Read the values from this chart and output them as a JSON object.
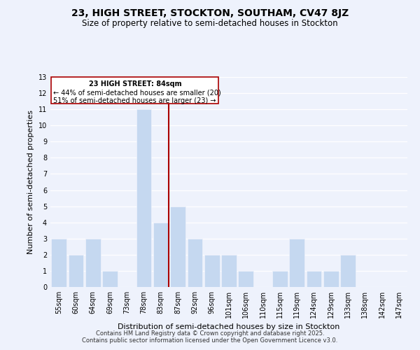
{
  "title": "23, HIGH STREET, STOCKTON, SOUTHAM, CV47 8JZ",
  "subtitle": "Size of property relative to semi-detached houses in Stockton",
  "xlabel": "Distribution of semi-detached houses by size in Stockton",
  "ylabel": "Number of semi-detached properties",
  "bin_labels": [
    "55sqm",
    "60sqm",
    "64sqm",
    "69sqm",
    "73sqm",
    "78sqm",
    "83sqm",
    "87sqm",
    "92sqm",
    "96sqm",
    "101sqm",
    "106sqm",
    "110sqm",
    "115sqm",
    "119sqm",
    "124sqm",
    "129sqm",
    "133sqm",
    "138sqm",
    "142sqm",
    "147sqm"
  ],
  "bar_heights": [
    3,
    2,
    3,
    1,
    0,
    11,
    4,
    5,
    3,
    2,
    2,
    1,
    0,
    1,
    3,
    1,
    1,
    2,
    0,
    0,
    0
  ],
  "highlight_bin_index": 6,
  "bar_color": "#c5d8f0",
  "highlight_line_color": "#aa0000",
  "background_color": "#eef2fc",
  "grid_color": "#d0d8e8",
  "ylim": [
    0,
    13
  ],
  "yticks": [
    0,
    1,
    2,
    3,
    4,
    5,
    6,
    7,
    8,
    9,
    10,
    11,
    12,
    13
  ],
  "annotation_title": "23 HIGH STREET: 84sqm",
  "annotation_line1": "← 44% of semi-detached houses are smaller (20)",
  "annotation_line2": "51% of semi-detached houses are larger (23) →",
  "footnote1": "Contains HM Land Registry data © Crown copyright and database right 2025.",
  "footnote2": "Contains public sector information licensed under the Open Government Licence v3.0.",
  "title_fontsize": 10,
  "subtitle_fontsize": 8.5,
  "axis_label_fontsize": 8,
  "tick_fontsize": 7,
  "annotation_fontsize": 7,
  "footnote_fontsize": 6
}
